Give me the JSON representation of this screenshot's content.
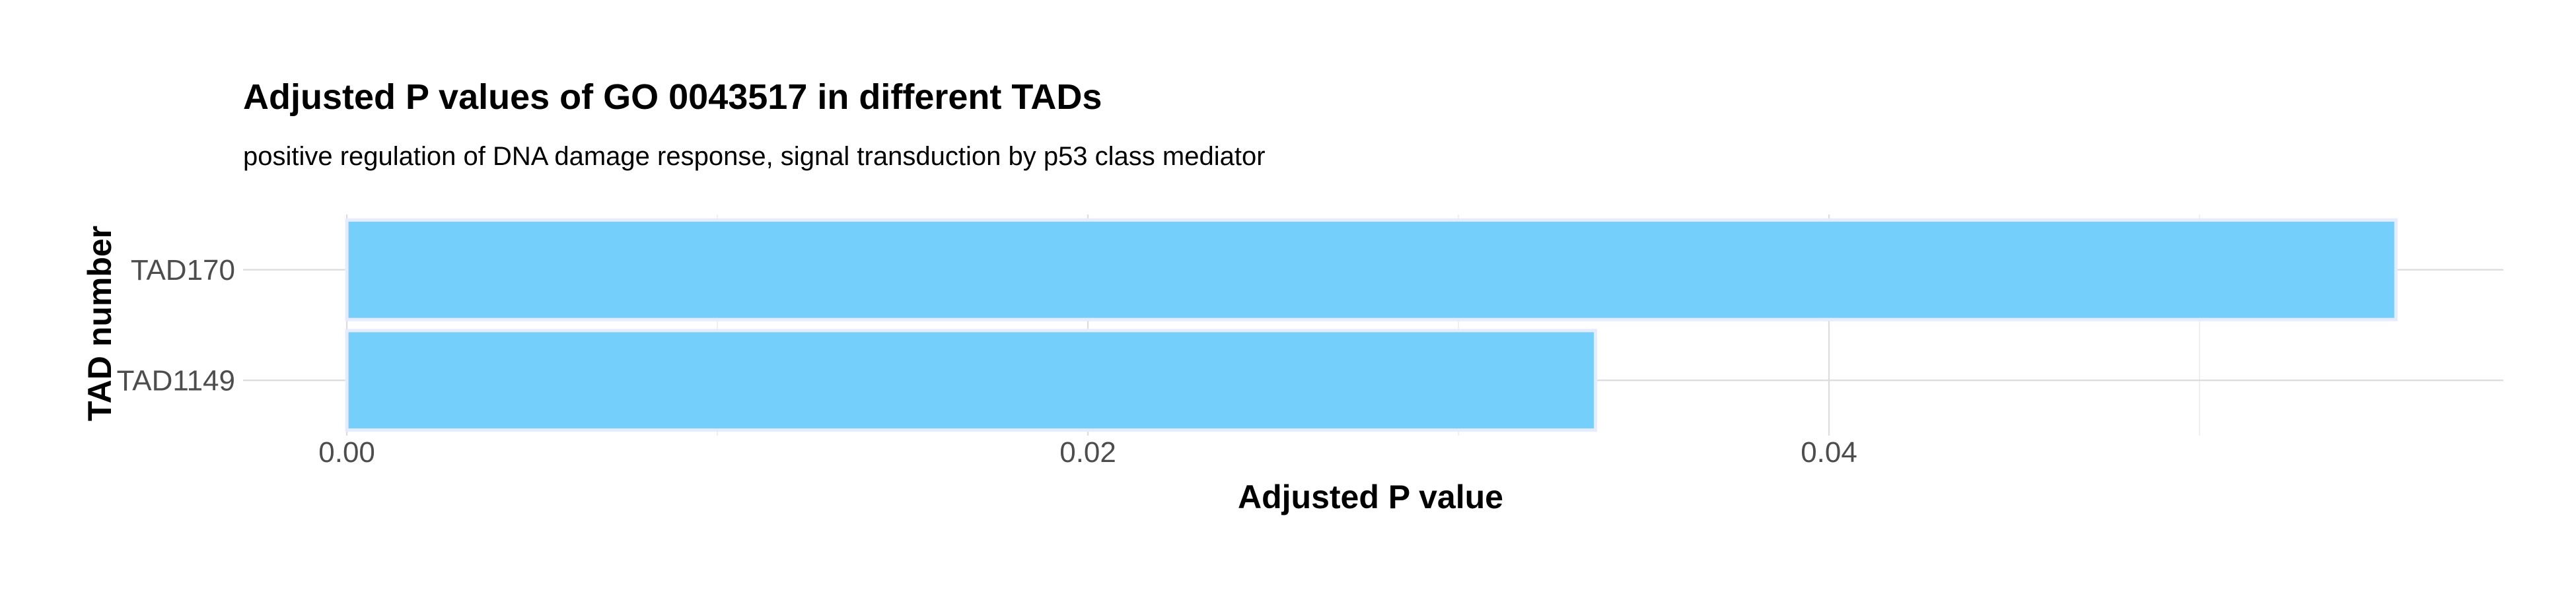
{
  "chart_data": {
    "type": "bar",
    "orientation": "horizontal",
    "title": "Adjusted P values of GO 0043517 in different TADs",
    "subtitle": "positive regulation of DNA damage response, signal transduction by p53 class mediator",
    "xlabel": "Adjusted P value",
    "ylabel": "TAD number",
    "categories": [
      "TAD170",
      "TAD1149"
    ],
    "values": [
      0.0553,
      0.0337
    ],
    "xlim": [
      -0.0028,
      0.0582
    ],
    "xticks": [
      0.0,
      0.02,
      0.04
    ],
    "xtick_labels": [
      "0.00",
      "0.02",
      "0.04"
    ],
    "grid": true,
    "bar_color": "#74cffb",
    "bar_outline_color": "#e6ecff",
    "grid_color": "#dcdcdc"
  }
}
